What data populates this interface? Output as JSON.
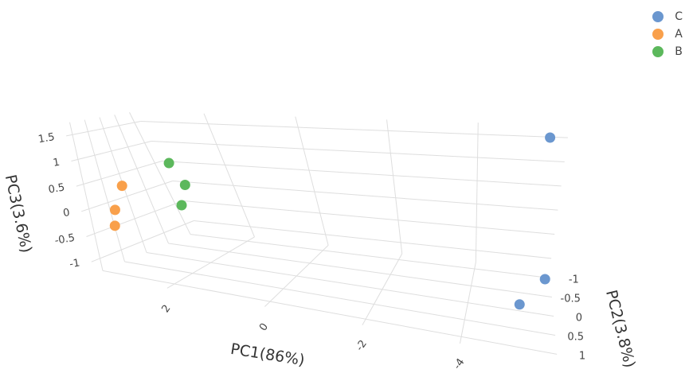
{
  "chart_data": {
    "type": "scatter",
    "projection": "3d",
    "axes": {
      "x": {
        "title": "PC1(86%)",
        "ticks": [
          "2",
          "0",
          "-2",
          "-4"
        ]
      },
      "y": {
        "title": "PC2(3.8%)",
        "ticks": [
          "-1",
          "-0.5",
          "0",
          "0.5",
          "1"
        ]
      },
      "z": {
        "title": "PC3(3.6%)",
        "ticks": [
          "-1",
          "-0.5",
          "0",
          "0.5",
          "1",
          "1.5"
        ]
      }
    },
    "legend_position": "top-right",
    "series": [
      {
        "name": "C",
        "color": "#6b97cf",
        "points": [
          {
            "x": -5.6,
            "y": -0.9,
            "z": 1.6
          },
          {
            "x": -5.8,
            "y": -0.6,
            "z": -1.0
          },
          {
            "x": -5.2,
            "y": -0.1,
            "z": -1.2
          }
        ]
      },
      {
        "name": "A",
        "color": "#f9a04b",
        "points": [
          {
            "x": 3.1,
            "y": 0.5,
            "z": 0.4
          },
          {
            "x": 3.3,
            "y": 0.6,
            "z": -0.1
          },
          {
            "x": 3.3,
            "y": 0.7,
            "z": -0.4
          }
        ]
      },
      {
        "name": "B",
        "color": "#5cb85c",
        "points": [
          {
            "x": 2.2,
            "y": 0.2,
            "z": 0.9
          },
          {
            "x": 1.9,
            "y": 0.3,
            "z": 0.5
          },
          {
            "x": 2.0,
            "y": 0.4,
            "z": 0.1
          }
        ]
      }
    ]
  }
}
